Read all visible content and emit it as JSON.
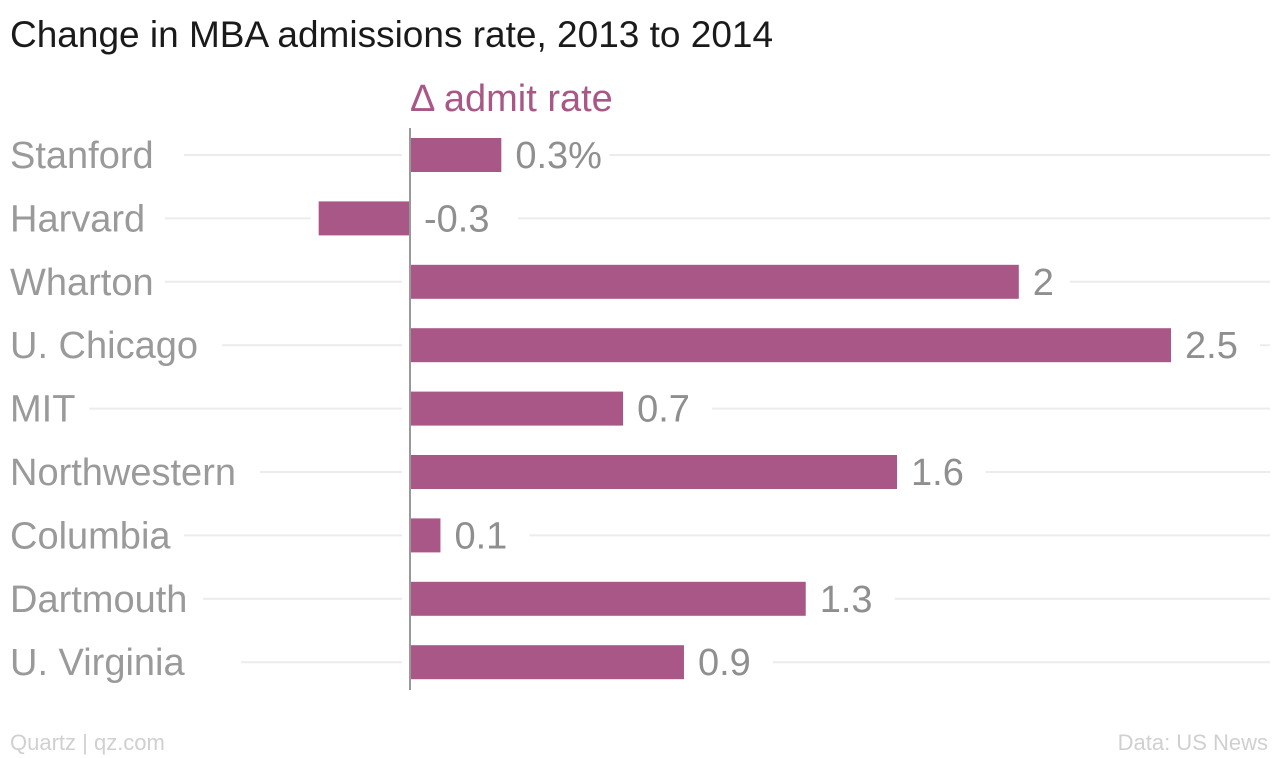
{
  "title": "Change in MBA admissions rate, 2013 to 2014",
  "footer": {
    "source_left": "Quartz | qz.com",
    "source_right": "Data: US News"
  },
  "colors": {
    "bar": "#a85787",
    "series_label": "#a85787",
    "category_text": "#9a9a9a",
    "value_text": "#8f8f8f",
    "gridline": "#ececec",
    "axis": "#999999"
  },
  "chart_data": {
    "type": "bar",
    "orientation": "horizontal",
    "categories": [
      "Stanford",
      "Harvard",
      "Wharton",
      "U. Chicago",
      "MIT",
      "Northwestern",
      "Columbia",
      "Dartmouth",
      "U. Virginia"
    ],
    "series": [
      {
        "name": "Δ admit rate",
        "values": [
          0.3,
          -0.3,
          2,
          2.5,
          0.7,
          1.6,
          0.1,
          1.3,
          0.9
        ]
      }
    ],
    "value_labels": [
      "0.3%",
      "-0.3",
      "2",
      "2.5",
      "0.7",
      "1.6",
      "0.1",
      "1.3",
      "0.9"
    ],
    "xlim": [
      -0.3,
      2.5
    ],
    "gridlines": true,
    "legend": "top"
  }
}
